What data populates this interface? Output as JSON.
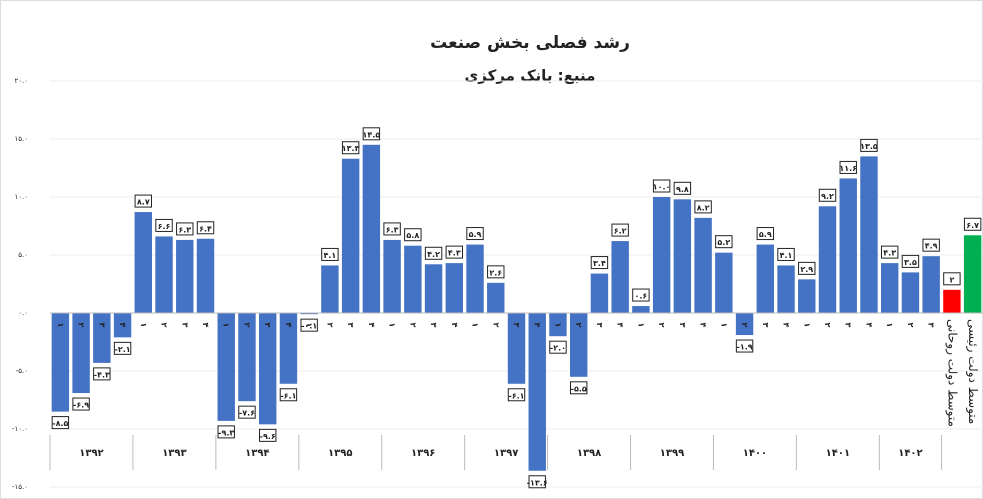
{
  "chart_data": {
    "type": "bar",
    "title": "رشد فصلی بخش صنعت",
    "subtitle": "منبع: بانک مرکزی",
    "categories": [
      "۱",
      "۲",
      "۳",
      "۴",
      "۱",
      "۲",
      "۳",
      "۴",
      "۱",
      "۲",
      "۳",
      "۴",
      "۱",
      "۲",
      "۳",
      "۴",
      "۱",
      "۲",
      "۳",
      "۴",
      "۱",
      "۲",
      "۳",
      "۴",
      "۱",
      "۲",
      "۳",
      "۴",
      "۱",
      "۲",
      "۳",
      "۴",
      "۱",
      "۲",
      "۳",
      "۴",
      "۱",
      "۲",
      "۳",
      "۴",
      "۱",
      "۲",
      "۳"
    ],
    "groups": [
      "۱۳۹۲",
      "۱۳۹۳",
      "۱۳۹۴",
      "۱۳۹۵",
      "۱۳۹۶",
      "۱۳۹۷",
      "۱۳۹۸",
      "۱۳۹۹",
      "۱۴۰۰",
      "۱۴۰۱",
      "۱۴۰۲"
    ],
    "values": [
      -8.5,
      -6.9,
      -4.3,
      -2.1,
      8.7,
      6.6,
      6.3,
      6.4,
      -9.3,
      -7.6,
      -9.6,
      -6.1,
      -0.1,
      4.1,
      13.3,
      14.5,
      6.3,
      5.8,
      4.2,
      4.3,
      5.9,
      2.6,
      -6.1,
      -13.6,
      -2.0,
      -5.5,
      3.4,
      6.2,
      0.6,
      10.0,
      9.8,
      8.2,
      5.2,
      -1.9,
      5.9,
      4.1,
      2.9,
      9.2,
      11.6,
      13.5,
      4.3,
      3.5,
      4.9
    ],
    "value_labels": [
      "-۸.۵",
      "-۶.۹",
      "-۴.۳",
      "-۲.۱",
      "۸.۷",
      "۶.۶",
      "۶.۳",
      "۶.۴",
      "-۹.۳",
      "-۷.۶",
      "-۹.۶",
      "-۶.۱",
      "-۰.۱",
      "۴.۱",
      "۱۳.۳",
      "۱۴.۵",
      "۶.۳",
      "۵.۸",
      "۴.۲",
      "۴.۳",
      "۵.۹",
      "۲.۶",
      "-۶.۱",
      "-۱۳.۶",
      "-۲.۰",
      "-۵.۵",
      "۳.۴",
      "۶.۲",
      "۰.۶",
      "۱۰.۰",
      "۹.۸",
      "۸.۲",
      "۵.۲",
      "-۱.۹",
      "۵.۹",
      "۴.۱",
      "۲.۹",
      "۹.۲",
      "۱۱.۶",
      "۱۳.۵",
      "۴.۳",
      "۳.۵",
      "۴.۹"
    ],
    "color": "#4472c4",
    "extra": [
      {
        "label": "متوسط دولت روحانی",
        "value": 2,
        "value_label": "۲",
        "color": "#ff0000"
      },
      {
        "label": "متوسط دولت رئیسی",
        "value": 6.7,
        "value_label": "۶.۷",
        "color": "#00b050"
      }
    ],
    "ylim": [
      -15,
      20
    ],
    "yticks": [
      {
        "value": 20,
        "label": "۲۰.۰"
      },
      {
        "value": 15,
        "label": "۱۵.۰"
      },
      {
        "value": 10,
        "label": "۱۰.۰"
      },
      {
        "value": 5,
        "label": "۵.۰"
      },
      {
        "value": 0,
        "label": "۰.۰"
      },
      {
        "value": -5,
        "label": "-۵.۰"
      },
      {
        "value": -10,
        "label": "-۱۰.۰"
      },
      {
        "value": -15,
        "label": "-۱۵.۰"
      }
    ],
    "grid": true
  }
}
